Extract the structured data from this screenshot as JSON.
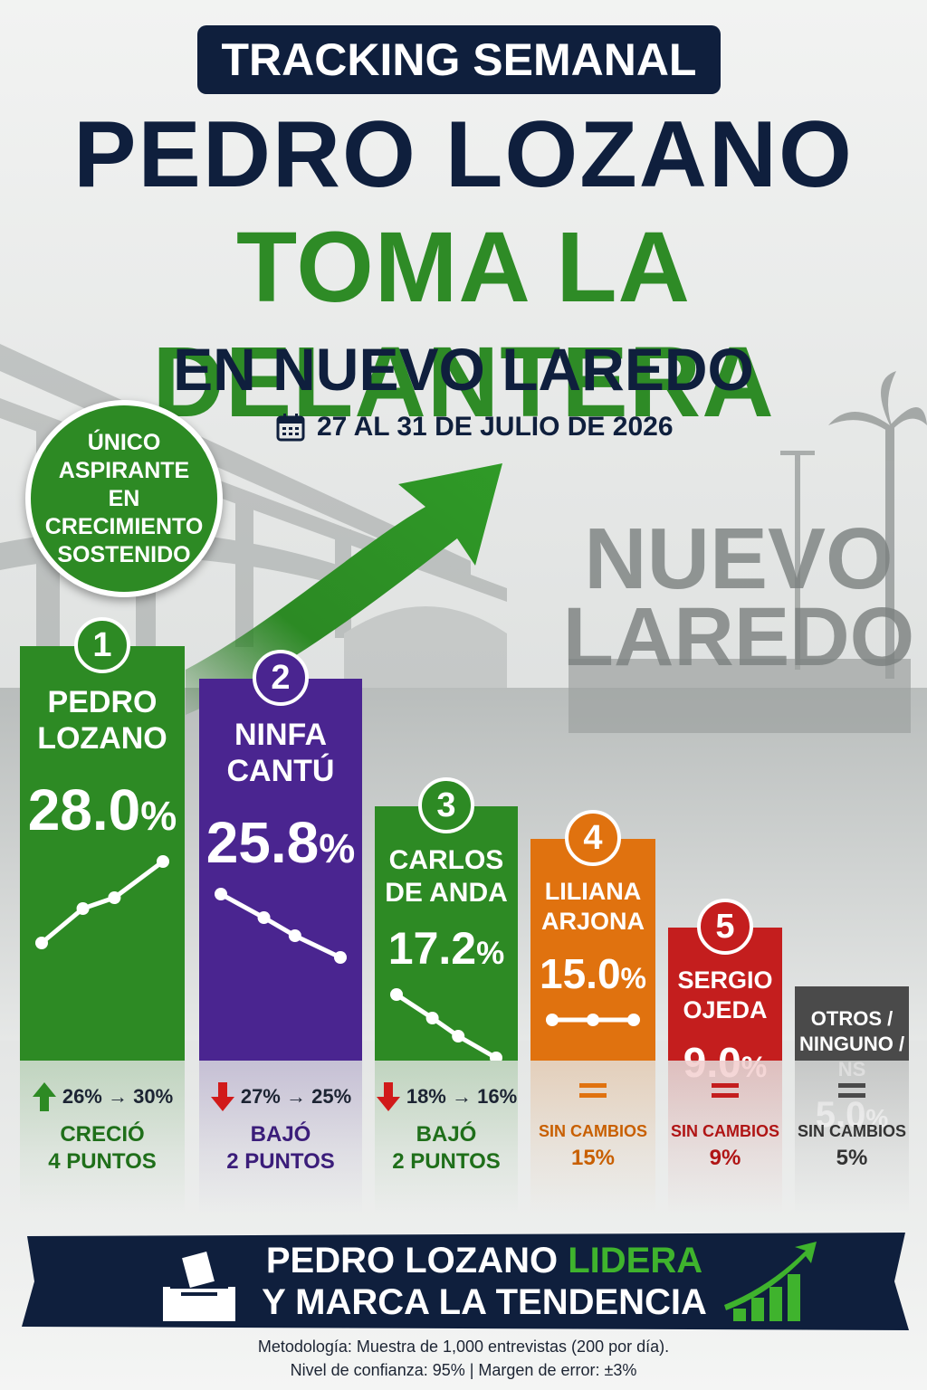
{
  "header": {
    "tag": "TRACKING SEMANAL",
    "line1": "PEDRO LOZANO",
    "line2": "TOMA LA DELANTERA",
    "line3": "EN NUEVO LAREDO",
    "date": "27 AL 31 DE JULIO DE 2026"
  },
  "badge": [
    "ÚNICO",
    "ASPIRANTE",
    "EN CRECIMIENTO",
    "SOSTENIDO"
  ],
  "sign": [
    "NUEVO",
    "LAREDO"
  ],
  "colors": {
    "navy": "#0f1f3d",
    "green": "#2d8a24",
    "purple": "#4a2590",
    "orange": "#e0720f",
    "red": "#c41e1e",
    "gray": "#4a4a4a"
  },
  "chart_data": {
    "type": "bar",
    "categories": [
      "PEDRO LOZANO",
      "NINFA CANTÚ",
      "CARLOS DE ANDA",
      "LILIANA ARJONA",
      "SERGIO OJEDA",
      "OTROS / NINGUNO / NS"
    ],
    "values": [
      28.0,
      25.8,
      17.2,
      15.0,
      9.0,
      5.0
    ],
    "candidates": [
      {
        "rank": "1",
        "name1": "PEDRO",
        "name2": "LOZANO",
        "name3": "",
        "value": 28.0,
        "pct_num": "28.0",
        "pct_sym": "%",
        "color": "#2d8a24",
        "trend": "up",
        "delta_from": "26%",
        "delta_to": "30%",
        "arrow": "up",
        "result1": "CRECIÓ",
        "result2": "4 PUNTOS"
      },
      {
        "rank": "2",
        "name1": "NINFA",
        "name2": "CANTÚ",
        "name3": "",
        "value": 25.8,
        "pct_num": "25.8",
        "pct_sym": "%",
        "color": "#4a2590",
        "trend": "down",
        "delta_from": "27%",
        "delta_to": "25%",
        "arrow": "down",
        "result1": "BAJÓ",
        "result2": "2 PUNTOS"
      },
      {
        "rank": "3",
        "name1": "CARLOS",
        "name2": "DE ANDA",
        "name3": "",
        "value": 17.2,
        "pct_num": "17.2",
        "pct_sym": "%",
        "color": "#2d8a24",
        "trend": "down",
        "delta_from": "18%",
        "delta_to": "16%",
        "arrow": "down",
        "result1": "BAJÓ",
        "result2": "2 PUNTOS"
      },
      {
        "rank": "4",
        "name1": "LILIANA",
        "name2": "ARJONA",
        "name3": "",
        "value": 15.0,
        "pct_num": "15.0",
        "pct_sym": "%",
        "color": "#e0720f",
        "trend": "flat",
        "delta_from": "",
        "delta_to": "",
        "arrow": "equal",
        "result1": "SIN CAMBIOS",
        "result2": "15%"
      },
      {
        "rank": "5",
        "name1": "SERGIO",
        "name2": "OJEDA",
        "name3": "",
        "value": 9.0,
        "pct_num": "9.0",
        "pct_sym": "%",
        "color": "#c41e1e",
        "trend": "flat",
        "delta_from": "",
        "delta_to": "",
        "arrow": "equal",
        "result1": "SIN CAMBIOS",
        "result2": "9%"
      },
      {
        "rank": "",
        "name1": "OTROS /",
        "name2": "NINGUNO /",
        "name3": "NS",
        "value": 5.0,
        "pct_num": "5.0",
        "pct_sym": "%",
        "color": "#4a4a4a",
        "trend": "flat",
        "delta_from": "",
        "delta_to": "",
        "arrow": "equal",
        "result1": "SIN CAMBIOS",
        "result2": "5%"
      }
    ]
  },
  "footer": {
    "line1_a": "PEDRO LOZANO ",
    "line1_b": "LIDERA",
    "line2": "Y MARCA LA TENDENCIA",
    "method1": "Metodología: Muestra de 1,000 entrevistas (200 por día).",
    "method2": "Nivel de confianza: 95%   |   Margen de error: ±3%"
  }
}
